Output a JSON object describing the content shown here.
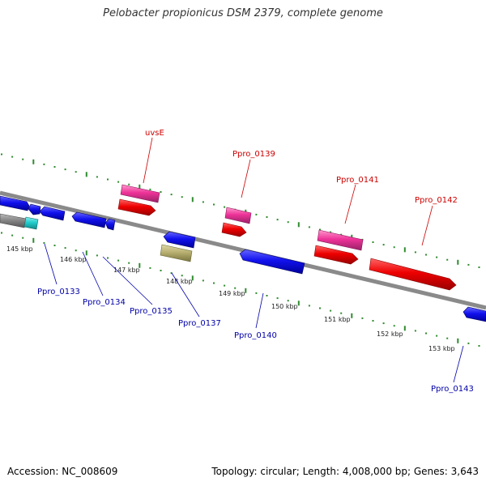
{
  "title": "Pelobacter propionicus DSM 2379, complete genome",
  "footer": {
    "accession": "Accession: NC_008609",
    "summary": "Topology: circular; Length: 4,008,000 bp; Genes: 3,643"
  },
  "colors": {
    "backbone": "#8a8a8a",
    "tick": "#2e8b2e",
    "forward_gene": "#ee1111",
    "forward_rna": "#ee3399",
    "reverse_gene": "#1111ee",
    "reverse_other": "#b8b070",
    "reverse_rna": "#22cccc",
    "forward_label": "#cc0000",
    "reverse_label": "#0000aa"
  },
  "scale": {
    "unit": "kbp",
    "ticks": [
      "145 kbp",
      "146 kbp",
      "147 kbp",
      "148 kbp",
      "149 kbp",
      "150 kbp",
      "151 kbp",
      "152 kbp",
      "153 kbp"
    ]
  },
  "forward_labels": [
    "uvsE",
    "Ppro_0139",
    "Ppro_0141",
    "Ppro_0142"
  ],
  "reverse_labels": [
    "Ppro_0133",
    "Ppro_0134",
    "Ppro_0135",
    "Ppro_0137",
    "Ppro_0140",
    "Ppro_0143"
  ]
}
